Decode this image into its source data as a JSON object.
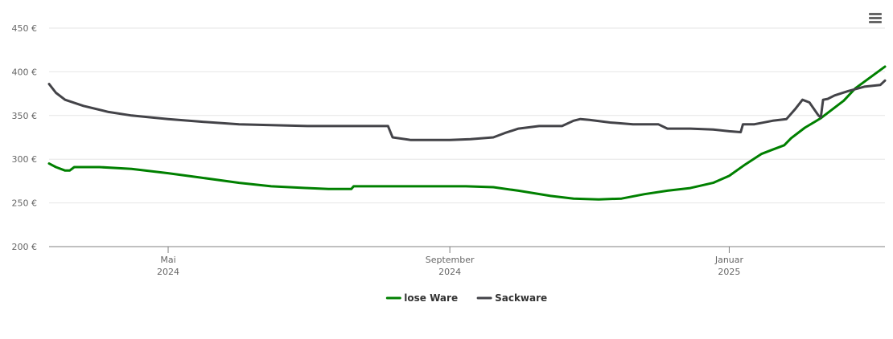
{
  "menu": {
    "icon": "hamburger-menu-icon"
  },
  "chart_data": {
    "type": "line",
    "title": "",
    "xlabel": "",
    "ylabel": "",
    "ylim": [
      200,
      450
    ],
    "y_ticks": [
      "200 €",
      "250 €",
      "300 €",
      "350 €",
      "400 €",
      "450 €"
    ],
    "y_tick_values": [
      200,
      250,
      300,
      350,
      400,
      450
    ],
    "x_range": [
      "2024-03-10",
      "2025-03-10"
    ],
    "x_ticks": [
      {
        "date": "2024-05-01",
        "month": "Mai",
        "year": "2024"
      },
      {
        "date": "2024-09-01",
        "month": "September",
        "year": "2024"
      },
      {
        "date": "2025-01-01",
        "month": "Januar",
        "year": "2025"
      }
    ],
    "grid": true,
    "legend_position": "bottom-center",
    "series": [
      {
        "name": "lose Ware",
        "color": "#008000",
        "points": [
          [
            "2024-03-10",
            295
          ],
          [
            "2024-03-13",
            291
          ],
          [
            "2024-03-17",
            287
          ],
          [
            "2024-03-19",
            287
          ],
          [
            "2024-03-21",
            291
          ],
          [
            "2024-04-01",
            291
          ],
          [
            "2024-04-15",
            289
          ],
          [
            "2024-05-01",
            284
          ],
          [
            "2024-05-15",
            279
          ],
          [
            "2024-06-01",
            273
          ],
          [
            "2024-06-15",
            269
          ],
          [
            "2024-07-01",
            267
          ],
          [
            "2024-07-10",
            266
          ],
          [
            "2024-07-20",
            266
          ],
          [
            "2024-07-21",
            269
          ],
          [
            "2024-08-01",
            269
          ],
          [
            "2024-08-20",
            269
          ],
          [
            "2024-09-08",
            269
          ],
          [
            "2024-09-20",
            268
          ],
          [
            "2024-10-01",
            264
          ],
          [
            "2024-10-15",
            258
          ],
          [
            "2024-10-25",
            255
          ],
          [
            "2024-11-05",
            254
          ],
          [
            "2024-11-15",
            255
          ],
          [
            "2024-11-25",
            260
          ],
          [
            "2024-12-05",
            264
          ],
          [
            "2024-12-15",
            267
          ],
          [
            "2024-12-25",
            273
          ],
          [
            "2025-01-01",
            281
          ],
          [
            "2025-01-08",
            294
          ],
          [
            "2025-01-15",
            306
          ],
          [
            "2025-01-20",
            311
          ],
          [
            "2025-01-25",
            316
          ],
          [
            "2025-01-28",
            324
          ],
          [
            "2025-02-03",
            336
          ],
          [
            "2025-02-10",
            347
          ],
          [
            "2025-02-20",
            367
          ],
          [
            "2025-02-25",
            381
          ],
          [
            "2025-03-10",
            406
          ]
        ]
      },
      {
        "name": "Sackware",
        "color": "#434348",
        "points": [
          [
            "2024-03-10",
            386
          ],
          [
            "2024-03-13",
            376
          ],
          [
            "2024-03-17",
            368
          ],
          [
            "2024-03-25",
            361
          ],
          [
            "2024-04-05",
            354
          ],
          [
            "2024-04-15",
            350
          ],
          [
            "2024-05-01",
            346
          ],
          [
            "2024-05-15",
            343
          ],
          [
            "2024-06-01",
            340
          ],
          [
            "2024-06-15",
            339
          ],
          [
            "2024-07-01",
            338
          ],
          [
            "2024-07-15",
            338
          ],
          [
            "2024-08-01",
            338
          ],
          [
            "2024-08-05",
            338
          ],
          [
            "2024-08-07",
            325
          ],
          [
            "2024-08-15",
            322
          ],
          [
            "2024-09-01",
            322
          ],
          [
            "2024-09-10",
            323
          ],
          [
            "2024-09-20",
            325
          ],
          [
            "2024-09-25",
            330
          ],
          [
            "2024-10-01",
            335
          ],
          [
            "2024-10-10",
            338
          ],
          [
            "2024-10-20",
            338
          ],
          [
            "2024-10-25",
            344
          ],
          [
            "2024-10-28",
            346
          ],
          [
            "2024-11-01",
            345
          ],
          [
            "2024-11-10",
            342
          ],
          [
            "2024-11-20",
            340
          ],
          [
            "2024-12-01",
            340
          ],
          [
            "2024-12-05",
            335
          ],
          [
            "2024-12-15",
            335
          ],
          [
            "2024-12-25",
            334
          ],
          [
            "2025-01-01",
            332
          ],
          [
            "2025-01-06",
            331
          ],
          [
            "2025-01-07",
            340
          ],
          [
            "2025-01-12",
            340
          ],
          [
            "2025-01-20",
            344
          ],
          [
            "2025-01-26",
            346
          ],
          [
            "2025-01-30",
            358
          ],
          [
            "2025-02-02",
            368
          ],
          [
            "2025-02-05",
            365
          ],
          [
            "2025-02-09",
            350
          ],
          [
            "2025-02-10",
            348
          ],
          [
            "2025-02-11",
            368
          ],
          [
            "2025-02-13",
            369
          ],
          [
            "2025-02-16",
            373
          ],
          [
            "2025-02-22",
            378
          ],
          [
            "2025-03-01",
            383
          ],
          [
            "2025-03-08",
            385
          ],
          [
            "2025-03-10",
            390
          ]
        ]
      }
    ]
  }
}
